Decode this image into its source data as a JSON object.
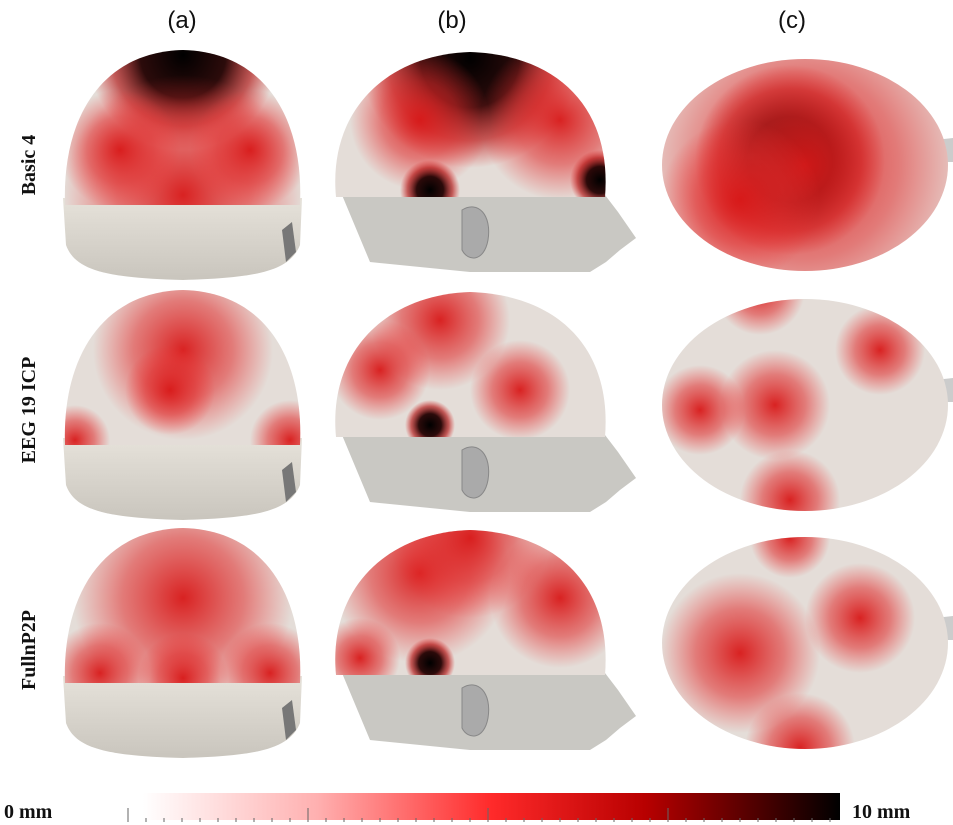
{
  "columns": [
    "(a)",
    "(b)",
    "(c)"
  ],
  "rows": [
    "Basic 4",
    "EEG 19 ICP",
    "FullnP2P"
  ],
  "colorbar": {
    "min_label": "0 mm",
    "max_label": "10 mm"
  }
}
